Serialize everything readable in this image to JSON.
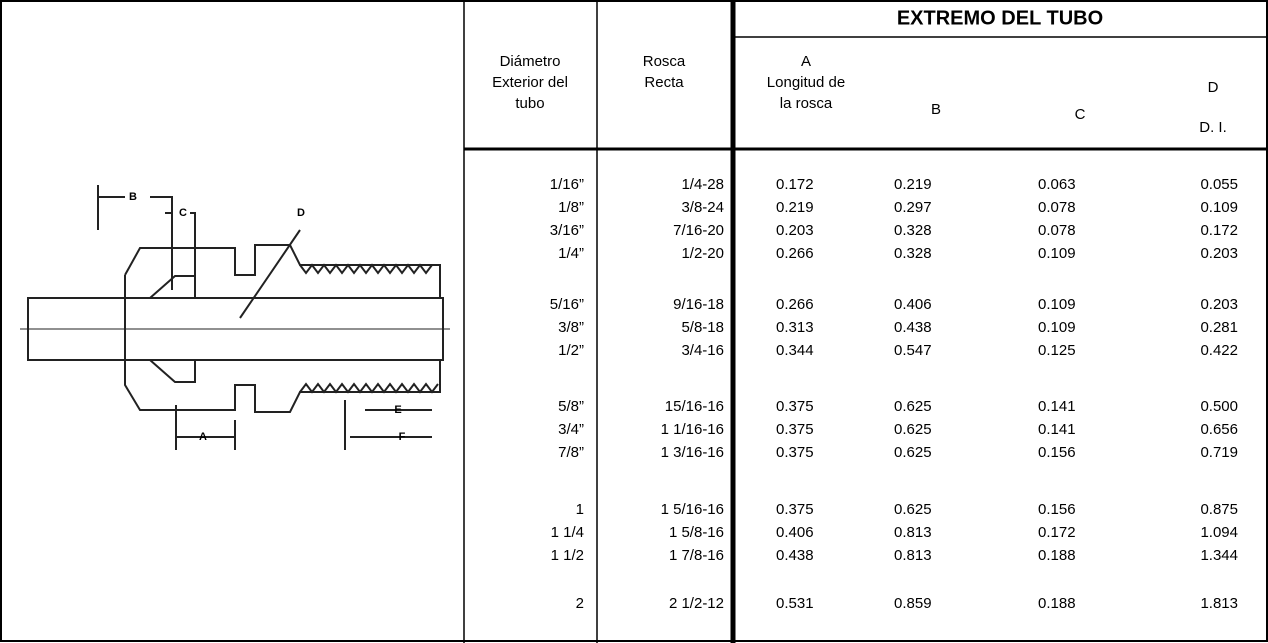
{
  "header": {
    "group_title": "EXTREMO DEL TUBO",
    "columns": [
      [
        "Diámetro",
        "Exterior del",
        "tubo"
      ],
      [
        "Rosca",
        "Recta"
      ],
      [
        "A",
        "Longitud de",
        "la rosca"
      ],
      [
        "B"
      ],
      [
        "C"
      ],
      [
        "D",
        "D. I."
      ]
    ]
  },
  "diagram": {
    "labels": [
      "B",
      "C",
      "D",
      "E",
      "F",
      "A"
    ]
  },
  "table": {
    "rows": [
      [
        "1/16”",
        "1/4-28",
        "0.172",
        "0.219",
        "0.063",
        "0.055"
      ],
      [
        "1/8”",
        "3/8-24",
        "0.219",
        "0.297",
        "0.078",
        "0.109"
      ],
      [
        "3/16”",
        "7/16-20",
        "0.203",
        "0.328",
        "0.078",
        "0.172"
      ],
      [
        "1/4”",
        "1/2-20",
        "0.266",
        "0.328",
        "0.109",
        "0.203"
      ],
      [
        "5/16”",
        "9/16-18",
        "0.266",
        "0.406",
        "0.109",
        "0.203"
      ],
      [
        "3/8”",
        "5/8-18",
        "0.313",
        "0.438",
        "0.109",
        "0.281"
      ],
      [
        "1/2”",
        "3/4-16",
        "0.344",
        "0.547",
        "0.125",
        "0.422"
      ],
      [
        "5/8”",
        "15/16-16",
        "0.375",
        "0.625",
        "0.141",
        "0.500"
      ],
      [
        "3/4”",
        "1 1/16-16",
        "0.375",
        "0.625",
        "0.141",
        "0.656"
      ],
      [
        "7/8”",
        "1 3/16-16",
        "0.375",
        "0.625",
        "0.156",
        "0.719"
      ],
      [
        "1",
        "1 5/16-16",
        "0.375",
        "0.625",
        "0.156",
        "0.875"
      ],
      [
        "1 1/4",
        "1 5/8-16",
        "0.406",
        "0.813",
        "0.172",
        "1.094"
      ],
      [
        "1 1/2",
        "1 7/8-16",
        "0.438",
        "0.813",
        "0.188",
        "1.344"
      ],
      [
        "2",
        "2 1/2-12",
        "0.531",
        "0.859",
        "0.188",
        "1.813"
      ]
    ]
  }
}
